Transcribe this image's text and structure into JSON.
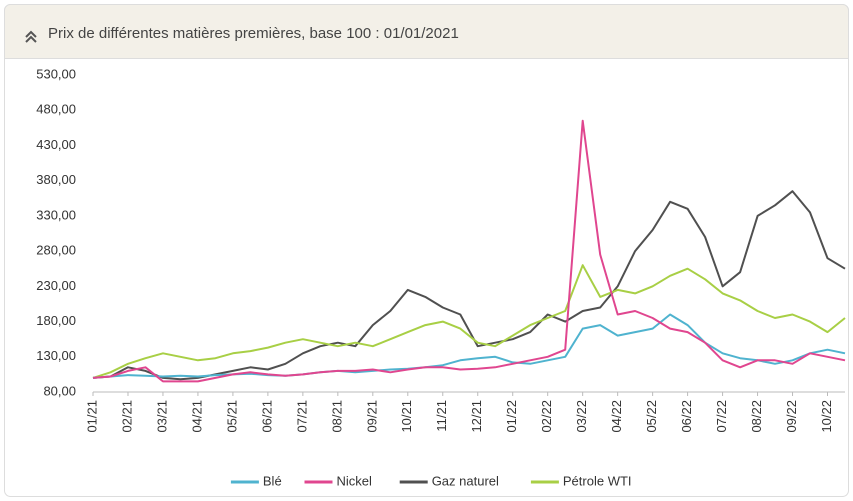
{
  "chart_data": {
    "type": "line",
    "title": "Prix de différentes matières premières, base 100 : 01/01/2021",
    "x": [
      0,
      0.5,
      1,
      1.5,
      2,
      2.5,
      3,
      3.5,
      4,
      4.5,
      5,
      5.5,
      6,
      6.5,
      7,
      7.5,
      8,
      8.5,
      9,
      9.5,
      10,
      10.5,
      11,
      11.5,
      12,
      12.5,
      13,
      13.5,
      14,
      14.5,
      15,
      15.5,
      16,
      16.5,
      17,
      17.5,
      18,
      18.5,
      19,
      19.5,
      20,
      20.5,
      21,
      21.5
    ],
    "xlim": [
      0,
      21.5
    ],
    "xticks": [
      {
        "value": 0,
        "label": "01/21"
      },
      {
        "value": 1,
        "label": "02/21"
      },
      {
        "value": 2,
        "label": "03/21"
      },
      {
        "value": 3,
        "label": "04/21"
      },
      {
        "value": 4,
        "label": "05/21"
      },
      {
        "value": 5,
        "label": "06/21"
      },
      {
        "value": 6,
        "label": "07/21"
      },
      {
        "value": 7,
        "label": "08/21"
      },
      {
        "value": 8,
        "label": "09/21"
      },
      {
        "value": 9,
        "label": "10/21"
      },
      {
        "value": 10,
        "label": "11/21"
      },
      {
        "value": 11,
        "label": "12/21"
      },
      {
        "value": 12,
        "label": "01/22"
      },
      {
        "value": 13,
        "label": "02/22"
      },
      {
        "value": 14,
        "label": "03/22"
      },
      {
        "value": 15,
        "label": "04/22"
      },
      {
        "value": 16,
        "label": "05/22"
      },
      {
        "value": 17,
        "label": "06/22"
      },
      {
        "value": 18,
        "label": "07/22"
      },
      {
        "value": 19,
        "label": "08/22"
      },
      {
        "value": 20,
        "label": "09/22"
      },
      {
        "value": 21,
        "label": "10/22"
      }
    ],
    "ylim": [
      80,
      530
    ],
    "yticks": [
      {
        "value": 80,
        "label": "80,00"
      },
      {
        "value": 130,
        "label": "130,00"
      },
      {
        "value": 180,
        "label": "180,00"
      },
      {
        "value": 230,
        "label": "230,00"
      },
      {
        "value": 280,
        "label": "280,00"
      },
      {
        "value": 330,
        "label": "330,00"
      },
      {
        "value": 380,
        "label": "380,00"
      },
      {
        "value": 430,
        "label": "430,00"
      },
      {
        "value": 480,
        "label": "480,00"
      },
      {
        "value": 530,
        "label": "530,00"
      }
    ],
    "grid": false,
    "series": [
      {
        "name": "Blé",
        "color": "#4fb3cf",
        "values": [
          100,
          102,
          104,
          103,
          102,
          103,
          102,
          104,
          105,
          106,
          104,
          103,
          105,
          108,
          110,
          108,
          110,
          112,
          113,
          115,
          118,
          125,
          128,
          130,
          122,
          120,
          125,
          130,
          170,
          175,
          160,
          165,
          170,
          190,
          175,
          150,
          135,
          128,
          125,
          120,
          125,
          135,
          140,
          135
        ]
      },
      {
        "name": "Nickel",
        "color": "#e0468f",
        "values": [
          100,
          102,
          110,
          115,
          95,
          95,
          95,
          100,
          105,
          108,
          105,
          103,
          105,
          108,
          110,
          110,
          112,
          108,
          112,
          115,
          115,
          112,
          113,
          115,
          120,
          125,
          130,
          140,
          465,
          275,
          190,
          195,
          185,
          170,
          165,
          150,
          125,
          115,
          125,
          125,
          120,
          135,
          130,
          125
        ]
      },
      {
        "name": "Gaz naturel",
        "color": "#505050",
        "values": [
          100,
          102,
          115,
          110,
          100,
          98,
          100,
          105,
          110,
          115,
          112,
          120,
          135,
          145,
          150,
          145,
          175,
          195,
          225,
          215,
          200,
          190,
          145,
          150,
          155,
          165,
          190,
          180,
          195,
          200,
          230,
          280,
          310,
          350,
          340,
          300,
          230,
          250,
          330,
          345,
          365,
          335,
          270,
          255
        ]
      },
      {
        "name": "Pétrole WTI",
        "color": "#a8cf45",
        "values": [
          100,
          108,
          120,
          128,
          135,
          130,
          125,
          128,
          135,
          138,
          143,
          150,
          155,
          150,
          145,
          150,
          145,
          155,
          165,
          175,
          180,
          170,
          150,
          145,
          160,
          175,
          185,
          195,
          260,
          215,
          225,
          220,
          230,
          245,
          255,
          240,
          220,
          210,
          195,
          185,
          190,
          180,
          165,
          185
        ]
      }
    ]
  }
}
